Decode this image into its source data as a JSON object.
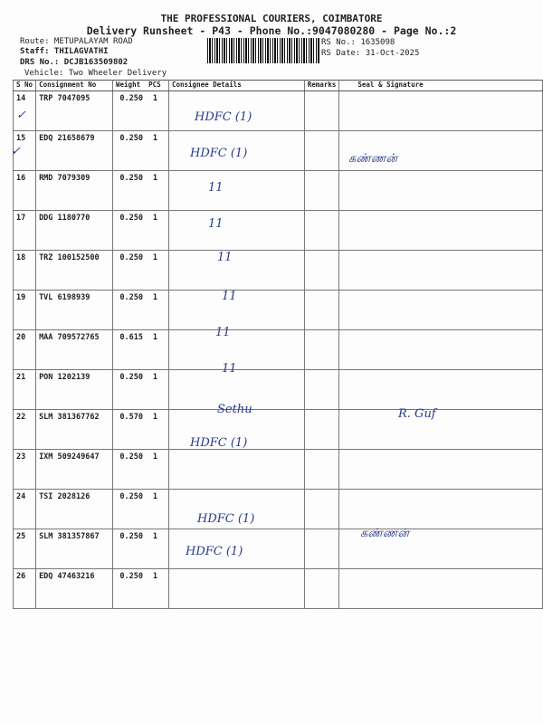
{
  "header": {
    "company": "THE PROFESSIONAL COURIERS, COIMBATORE",
    "subtitle": "Delivery Runsheet - P43 - Phone No.:9047080280 - Page No.:2",
    "route": "Route: METUPALAYAM ROAD",
    "staff": "Staff: THILAGVATHI",
    "drs": "DRS No.: DCJB163509802",
    "vehicle": "Vehicle: Two Wheeler Delivery",
    "rs_no": "RS No.: 1635098",
    "rs_date": "RS Date: 31-Oct-2025"
  },
  "table": {
    "columns": [
      "S No",
      "Consignment No",
      "Weight",
      "PCS",
      "Consignee Details",
      "Remarks",
      "Seal & Signature"
    ],
    "rows": [
      {
        "sno": "14",
        "cn": "TRP 7047095",
        "weight": "0.250",
        "pcs": "1"
      },
      {
        "sno": "15",
        "cn": "EDQ 21658679",
        "weight": "0.250",
        "pcs": "1"
      },
      {
        "sno": "16",
        "cn": "RMD 7079309",
        "weight": "0.250",
        "pcs": "1"
      },
      {
        "sno": "17",
        "cn": "DDG 1180770",
        "weight": "0.250",
        "pcs": "1"
      },
      {
        "sno": "18",
        "cn": "TRZ 100152500",
        "weight": "0.250",
        "pcs": "1"
      },
      {
        "sno": "19",
        "cn": "TVL 6198939",
        "weight": "0.250",
        "pcs": "1"
      },
      {
        "sno": "20",
        "cn": "MAA 709572765",
        "weight": "0.615",
        "pcs": "1"
      },
      {
        "sno": "21",
        "cn": "PON 1202139",
        "weight": "0.250",
        "pcs": "1"
      },
      {
        "sno": "22",
        "cn": "SLM 381367762",
        "weight": "0.570",
        "pcs": "1"
      },
      {
        "sno": "23",
        "cn": "IXM 509249647",
        "weight": "0.250",
        "pcs": "1"
      },
      {
        "sno": "24",
        "cn": "TSI 2028126",
        "weight": "0.250",
        "pcs": "1"
      },
      {
        "sno": "25",
        "cn": "SLM 381357867",
        "weight": "0.250",
        "pcs": "1"
      },
      {
        "sno": "26",
        "cn": "EDQ 47463216",
        "weight": "0.250",
        "pcs": "1"
      }
    ]
  },
  "handwriting": [
    "HDFC (1)",
    "HDFC (1)",
    "கண்ணன்",
    "11",
    "11",
    "11",
    "11",
    "11",
    "11",
    "Sethu",
    "R. Guf",
    "HDFC (1)",
    "HDFC (1)",
    "கண்ணன்",
    "HDFC (1)"
  ],
  "ink_color": "#2a3a8a"
}
